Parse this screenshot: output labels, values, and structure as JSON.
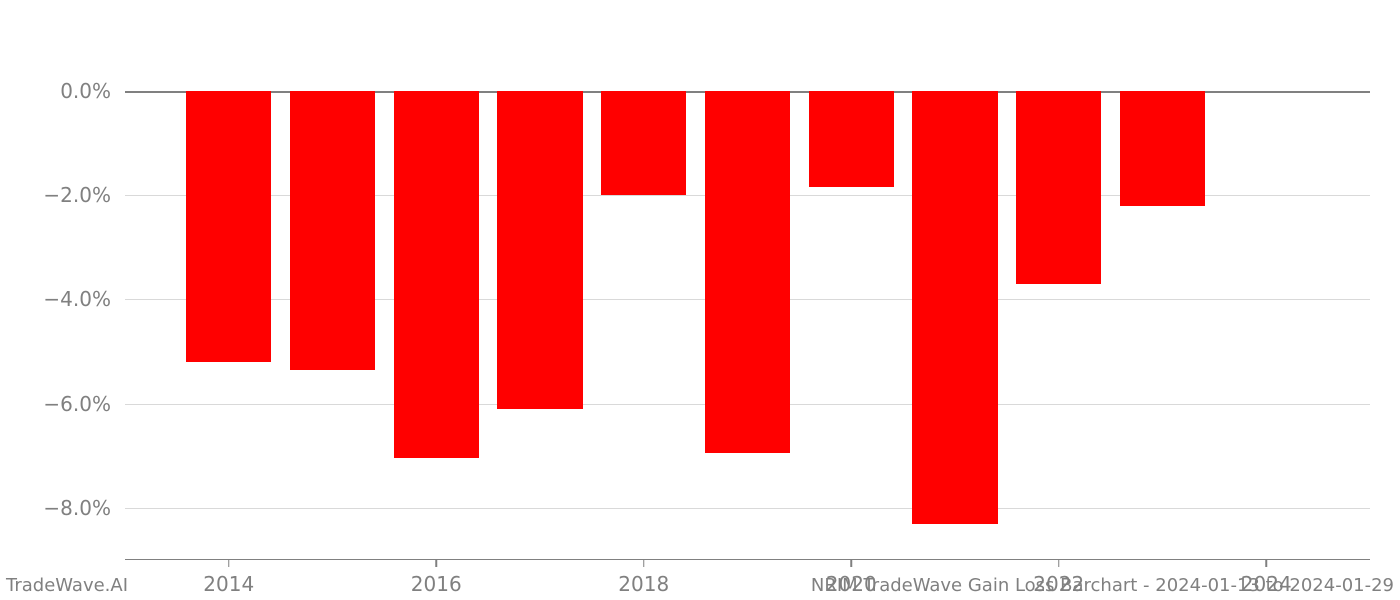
{
  "chart": {
    "type": "bar",
    "background_color": "#ffffff",
    "grid_color": "#d9d9d9",
    "axis_color": "#808080",
    "bar_color": "#ff0000",
    "label_color": "#808080",
    "label_fontsize": 20,
    "footer_fontsize": 18,
    "ylim": [
      -9.0,
      0.5
    ],
    "yticks": [
      {
        "value": 0.0,
        "label": "0.0%"
      },
      {
        "value": -2.0,
        "label": "−2.0%"
      },
      {
        "value": -4.0,
        "label": "−4.0%"
      },
      {
        "value": -6.0,
        "label": "−6.0%"
      },
      {
        "value": -8.0,
        "label": "−8.0%"
      }
    ],
    "xlim": [
      2013.0,
      2025.0
    ],
    "xticks": [
      {
        "value": 2014,
        "label": "2014"
      },
      {
        "value": 2016,
        "label": "2016"
      },
      {
        "value": 2018,
        "label": "2018"
      },
      {
        "value": 2020,
        "label": "2020"
      },
      {
        "value": 2022,
        "label": "2022"
      },
      {
        "value": 2024,
        "label": "2024"
      }
    ],
    "bar_width_data_units": 0.82,
    "series": [
      {
        "x": 2014,
        "y": -5.2
      },
      {
        "x": 2015,
        "y": -5.35
      },
      {
        "x": 2016,
        "y": -7.05
      },
      {
        "x": 2017,
        "y": -6.1
      },
      {
        "x": 2018,
        "y": -2.0
      },
      {
        "x": 2019,
        "y": -6.95
      },
      {
        "x": 2020,
        "y": -1.85
      },
      {
        "x": 2021,
        "y": -8.3
      },
      {
        "x": 2022,
        "y": -3.7
      },
      {
        "x": 2023,
        "y": -2.2
      }
    ]
  },
  "footer": {
    "left": "TradeWave.AI",
    "right": "NRIM TradeWave Gain Loss Barchart - 2024-01-13 to 2024-01-29"
  }
}
